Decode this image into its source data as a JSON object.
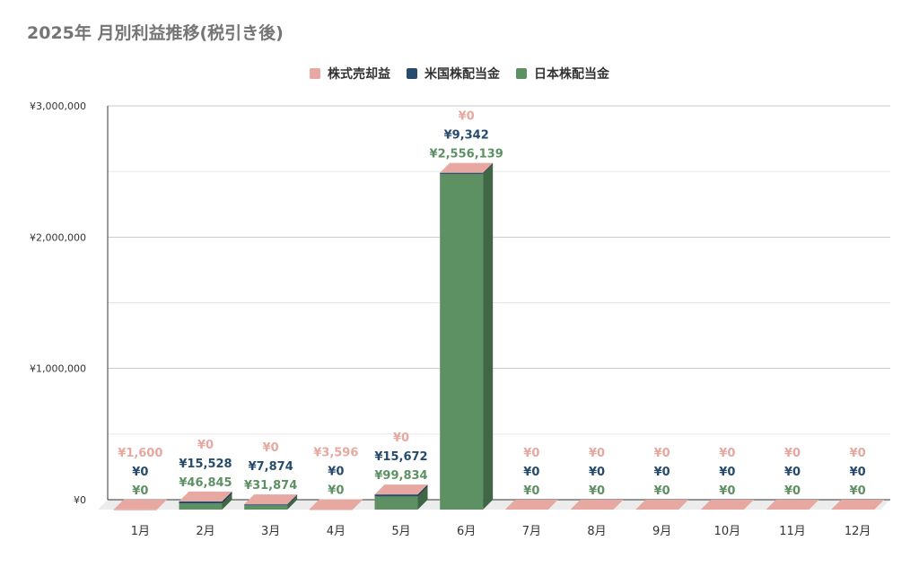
{
  "colors": {
    "sell": "#e6a8a0",
    "us": "#274b6d",
    "jp": "#5d9164",
    "jp_side": "#3f6645",
    "jp_top": "#e6a8a0",
    "grid": "#dddddd",
    "axis_text": "#333333"
  },
  "chart_data": {
    "type": "bar",
    "stacked": true,
    "three_d": true,
    "title": "2025年 月別利益推移(税引き後)",
    "legend_position": "top-center",
    "categories": [
      "1月",
      "2月",
      "3月",
      "4月",
      "5月",
      "6月",
      "7月",
      "8月",
      "9月",
      "10月",
      "11月",
      "12月"
    ],
    "ylim": [
      0,
      3000000
    ],
    "yticks": [
      0,
      1000000,
      2000000,
      3000000
    ],
    "ytick_labels": [
      "¥0",
      "¥1,000,000",
      "¥2,000,000",
      "¥3,000,000"
    ],
    "grid": true,
    "series": [
      {
        "name": "株式売却益",
        "key": "sell",
        "values": [
          1600,
          0,
          0,
          3596,
          0,
          0,
          0,
          0,
          0,
          0,
          0,
          0
        ],
        "labels": [
          "¥1,600",
          "¥0",
          "¥0",
          "¥3,596",
          "¥0",
          "¥0",
          "¥0",
          "¥0",
          "¥0",
          "¥0",
          "¥0",
          "¥0"
        ]
      },
      {
        "name": "米国株配当金",
        "key": "us",
        "values": [
          0,
          15528,
          7874,
          0,
          15672,
          9342,
          0,
          0,
          0,
          0,
          0,
          0
        ],
        "labels": [
          "¥0",
          "¥15,528",
          "¥7,874",
          "¥0",
          "¥15,672",
          "¥9,342",
          "¥0",
          "¥0",
          "¥0",
          "¥0",
          "¥0",
          "¥0"
        ]
      },
      {
        "name": "日本株配当金",
        "key": "jp",
        "values": [
          0,
          46845,
          31874,
          0,
          99834,
          2556139,
          0,
          0,
          0,
          0,
          0,
          0
        ],
        "labels": [
          "¥0",
          "¥46,845",
          "¥31,874",
          "¥0",
          "¥99,834",
          "¥2,556,139",
          "¥0",
          "¥0",
          "¥0",
          "¥0",
          "¥0",
          "¥0"
        ]
      }
    ]
  }
}
